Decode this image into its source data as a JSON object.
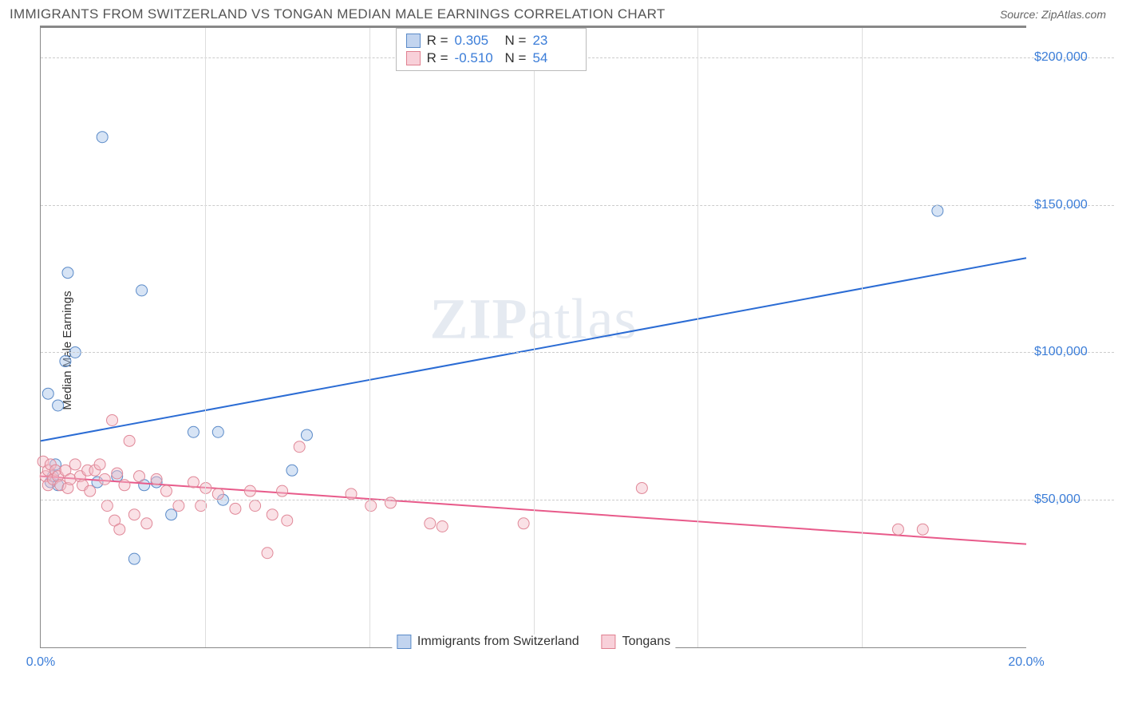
{
  "header": {
    "title": "IMMIGRANTS FROM SWITZERLAND VS TONGAN MEDIAN MALE EARNINGS CORRELATION CHART",
    "source_label": "Source:",
    "source_value": "ZipAtlas.com"
  },
  "chart": {
    "type": "scatter",
    "y_axis_label": "Median Male Earnings",
    "watermark": "ZIPatlas",
    "xlim": [
      0,
      20
    ],
    "ylim": [
      0,
      210000
    ],
    "x_ticks": [
      {
        "v": 0,
        "label": "0.0%"
      },
      {
        "v": 20,
        "label": "20.0%"
      }
    ],
    "x_minor_ticks": [
      3.33,
      6.67,
      10,
      13.33,
      16.67
    ],
    "y_ticks": [
      {
        "v": 50000,
        "label": "$50,000"
      },
      {
        "v": 100000,
        "label": "$100,000"
      },
      {
        "v": 150000,
        "label": "$150,000"
      },
      {
        "v": 200000,
        "label": "$200,000"
      }
    ],
    "background_color": "#ffffff",
    "grid_color": "#cccccc",
    "axis_color": "#888888",
    "tick_label_color": "#3b7dd8",
    "marker_radius": 7,
    "marker_opacity": 0.45,
    "line_width": 2,
    "series": [
      {
        "name": "Immigrants from Switzerland",
        "color_fill": "#a6c4e8",
        "color_stroke": "#5a8ac8",
        "line_color": "#2b6cd4",
        "R": "0.305",
        "N": "23",
        "trend": {
          "x1": 0,
          "y1": 70000,
          "x2": 20,
          "y2": 132000
        },
        "points": [
          {
            "x": 0.15,
            "y": 86000
          },
          {
            "x": 0.2,
            "y": 56000
          },
          {
            "x": 0.25,
            "y": 58000
          },
          {
            "x": 0.3,
            "y": 62000
          },
          {
            "x": 0.35,
            "y": 82000
          },
          {
            "x": 0.35,
            "y": 55000
          },
          {
            "x": 0.5,
            "y": 97000
          },
          {
            "x": 0.55,
            "y": 127000
          },
          {
            "x": 0.7,
            "y": 100000
          },
          {
            "x": 1.15,
            "y": 56000
          },
          {
            "x": 1.25,
            "y": 173000
          },
          {
            "x": 1.55,
            "y": 58000
          },
          {
            "x": 1.9,
            "y": 30000
          },
          {
            "x": 2.05,
            "y": 121000
          },
          {
            "x": 2.1,
            "y": 55000
          },
          {
            "x": 2.35,
            "y": 56000
          },
          {
            "x": 2.65,
            "y": 45000
          },
          {
            "x": 3.1,
            "y": 73000
          },
          {
            "x": 3.6,
            "y": 73000
          },
          {
            "x": 3.7,
            "y": 50000
          },
          {
            "x": 5.1,
            "y": 60000
          },
          {
            "x": 5.4,
            "y": 72000
          },
          {
            "x": 18.2,
            "y": 148000
          }
        ]
      },
      {
        "name": "Tongans",
        "color_fill": "#f4bcc8",
        "color_stroke": "#e08898",
        "line_color": "#e85a8a",
        "R": "-0.510",
        "N": "54",
        "trend": {
          "x1": 0,
          "y1": 58000,
          "x2": 20,
          "y2": 35000
        },
        "points": [
          {
            "x": 0.05,
            "y": 63000
          },
          {
            "x": 0.1,
            "y": 58000
          },
          {
            "x": 0.15,
            "y": 60000
          },
          {
            "x": 0.15,
            "y": 55000
          },
          {
            "x": 0.2,
            "y": 62000
          },
          {
            "x": 0.25,
            "y": 57000
          },
          {
            "x": 0.3,
            "y": 60000
          },
          {
            "x": 0.35,
            "y": 58000
          },
          {
            "x": 0.4,
            "y": 55000
          },
          {
            "x": 0.5,
            "y": 60000
          },
          {
            "x": 0.55,
            "y": 54000
          },
          {
            "x": 0.6,
            "y": 57000
          },
          {
            "x": 0.7,
            "y": 62000
          },
          {
            "x": 0.8,
            "y": 58000
          },
          {
            "x": 0.85,
            "y": 55000
          },
          {
            "x": 0.95,
            "y": 60000
          },
          {
            "x": 1.0,
            "y": 53000
          },
          {
            "x": 1.1,
            "y": 60000
          },
          {
            "x": 1.2,
            "y": 62000
          },
          {
            "x": 1.3,
            "y": 57000
          },
          {
            "x": 1.35,
            "y": 48000
          },
          {
            "x": 1.45,
            "y": 77000
          },
          {
            "x": 1.5,
            "y": 43000
          },
          {
            "x": 1.55,
            "y": 59000
          },
          {
            "x": 1.6,
            "y": 40000
          },
          {
            "x": 1.7,
            "y": 55000
          },
          {
            "x": 1.8,
            "y": 70000
          },
          {
            "x": 1.9,
            "y": 45000
          },
          {
            "x": 2.0,
            "y": 58000
          },
          {
            "x": 2.15,
            "y": 42000
          },
          {
            "x": 2.35,
            "y": 57000
          },
          {
            "x": 2.55,
            "y": 53000
          },
          {
            "x": 2.8,
            "y": 48000
          },
          {
            "x": 3.1,
            "y": 56000
          },
          {
            "x": 3.25,
            "y": 48000
          },
          {
            "x": 3.35,
            "y": 54000
          },
          {
            "x": 3.6,
            "y": 52000
          },
          {
            "x": 3.95,
            "y": 47000
          },
          {
            "x": 4.25,
            "y": 53000
          },
          {
            "x": 4.35,
            "y": 48000
          },
          {
            "x": 4.6,
            "y": 32000
          },
          {
            "x": 4.7,
            "y": 45000
          },
          {
            "x": 4.9,
            "y": 53000
          },
          {
            "x": 5.0,
            "y": 43000
          },
          {
            "x": 5.25,
            "y": 68000
          },
          {
            "x": 6.3,
            "y": 52000
          },
          {
            "x": 6.7,
            "y": 48000
          },
          {
            "x": 7.1,
            "y": 49000
          },
          {
            "x": 7.9,
            "y": 42000
          },
          {
            "x": 8.15,
            "y": 41000
          },
          {
            "x": 9.8,
            "y": 42000
          },
          {
            "x": 12.2,
            "y": 54000
          },
          {
            "x": 17.4,
            "y": 40000
          },
          {
            "x": 17.9,
            "y": 40000
          }
        ]
      }
    ]
  },
  "legend_stats": {
    "r_label": "R =",
    "n_label": "N ="
  },
  "bottom_legend": {
    "items": [
      "Immigrants from Switzerland",
      "Tongans"
    ]
  }
}
